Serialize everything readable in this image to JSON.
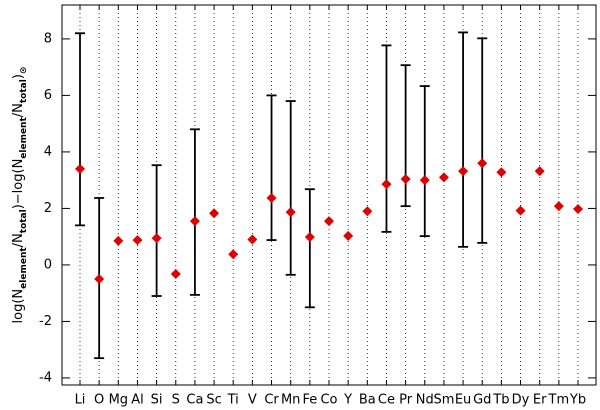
{
  "chart_data": {
    "type": "errorbar",
    "y_label_parts": [
      "log(N",
      "element",
      "/N",
      "total",
      ")−log(N",
      "element",
      "/N",
      "total",
      ")",
      "⊙"
    ],
    "categories": [
      "Li",
      "O",
      "Mg",
      "Al",
      "Si",
      "S",
      "Ca",
      "Sc",
      "Ti",
      "V",
      "Cr",
      "Mn",
      "Fe",
      "Co",
      "Y",
      "Ba",
      "Ce",
      "Pr",
      "Nd",
      "Sm",
      "Eu",
      "Gd",
      "Tb",
      "Dy",
      "Er",
      "Tm",
      "Yb"
    ],
    "values": [
      3.4,
      -0.5,
      0.85,
      0.88,
      0.95,
      -0.32,
      1.55,
      1.83,
      0.38,
      0.9,
      2.37,
      1.87,
      0.99,
      1.55,
      1.03,
      1.9,
      2.86,
      3.04,
      3.0,
      3.1,
      3.32,
      3.6,
      3.28,
      1.92,
      3.32,
      2.08,
      1.98
    ],
    "lower": [
      1.4,
      -3.3,
      null,
      null,
      -1.1,
      null,
      -1.06,
      null,
      null,
      null,
      0.88,
      -0.35,
      -1.5,
      null,
      null,
      null,
      1.17,
      2.08,
      1.02,
      null,
      0.64,
      0.78,
      null,
      null,
      null,
      null,
      null
    ],
    "upper": [
      8.2,
      2.37,
      null,
      null,
      3.53,
      null,
      4.8,
      null,
      null,
      null,
      6.0,
      5.8,
      2.68,
      null,
      null,
      null,
      7.77,
      7.07,
      6.33,
      null,
      8.23,
      8.02,
      null,
      null,
      null,
      null,
      null
    ],
    "color": "#e00000",
    "ylim": [
      -4.25,
      9.2
    ],
    "yticks": [
      -4,
      -2,
      0,
      2,
      4,
      6,
      8
    ],
    "grid": true
  }
}
